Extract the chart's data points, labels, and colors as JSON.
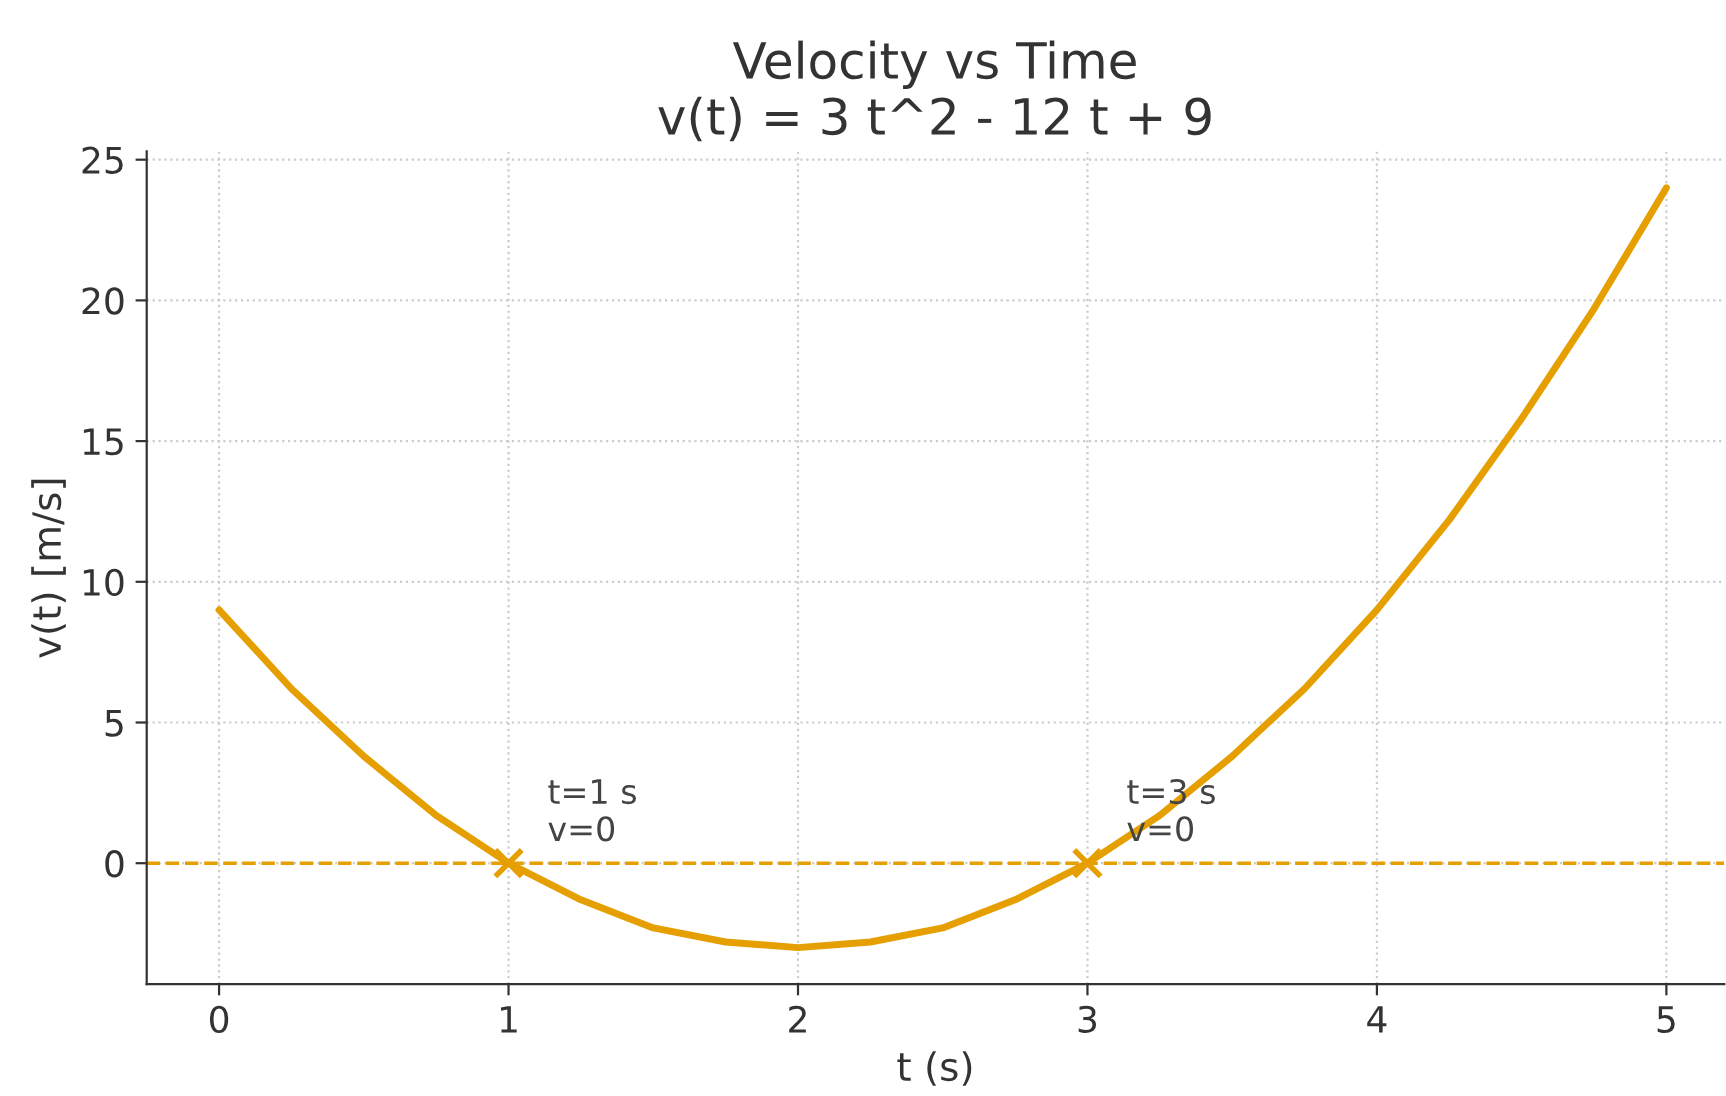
{
  "chart_data": {
    "type": "line",
    "title": "Velocity vs Time\nv(t) = 3 t^2 - 12 t + 9",
    "xlabel": "t (s)",
    "ylabel": "v(t) [m/s]",
    "series": [
      {
        "color": "#e69f00",
        "x": [
          0,
          0.25,
          0.5,
          0.75,
          1,
          1.25,
          1.5,
          1.75,
          2,
          2.25,
          2.5,
          2.75,
          3,
          3.25,
          3.5,
          3.75,
          4,
          4.25,
          4.5,
          4.75,
          5
        ],
        "values": [
          9,
          6.2,
          3.8,
          1.7,
          0,
          -1.3,
          -2.3,
          -2.8,
          -3,
          -2.8,
          -2.3,
          -1.3,
          0,
          1.7,
          3.8,
          6.2,
          9,
          12.2,
          15.8,
          19.7,
          24
        ],
        "marker": "none",
        "line_style": "solid"
      },
      {
        "type": "scatter",
        "color": "#e69f00",
        "x": [
          1,
          3
        ],
        "values": [
          0,
          0
        ],
        "marker": "cross"
      }
    ],
    "annotations": [
      {
        "text": "t=1 s\nv=0",
        "x": 1,
        "y": 0
      },
      {
        "text": "t=3 s\nv=0",
        "x": 3,
        "y": 0
      }
    ],
    "ref_lines": [
      {
        "axis": "y",
        "value": 0,
        "color": "#e69f00",
        "line_style": "dashed"
      }
    ],
    "xlim": [
      -0.25,
      5.2
    ],
    "ylim": [
      -4.3,
      25.3
    ],
    "xticks": [
      0,
      1,
      2,
      3,
      4,
      5
    ],
    "yticks": [
      0,
      5,
      10,
      15,
      20,
      25
    ],
    "grid": true,
    "legend": false
  }
}
